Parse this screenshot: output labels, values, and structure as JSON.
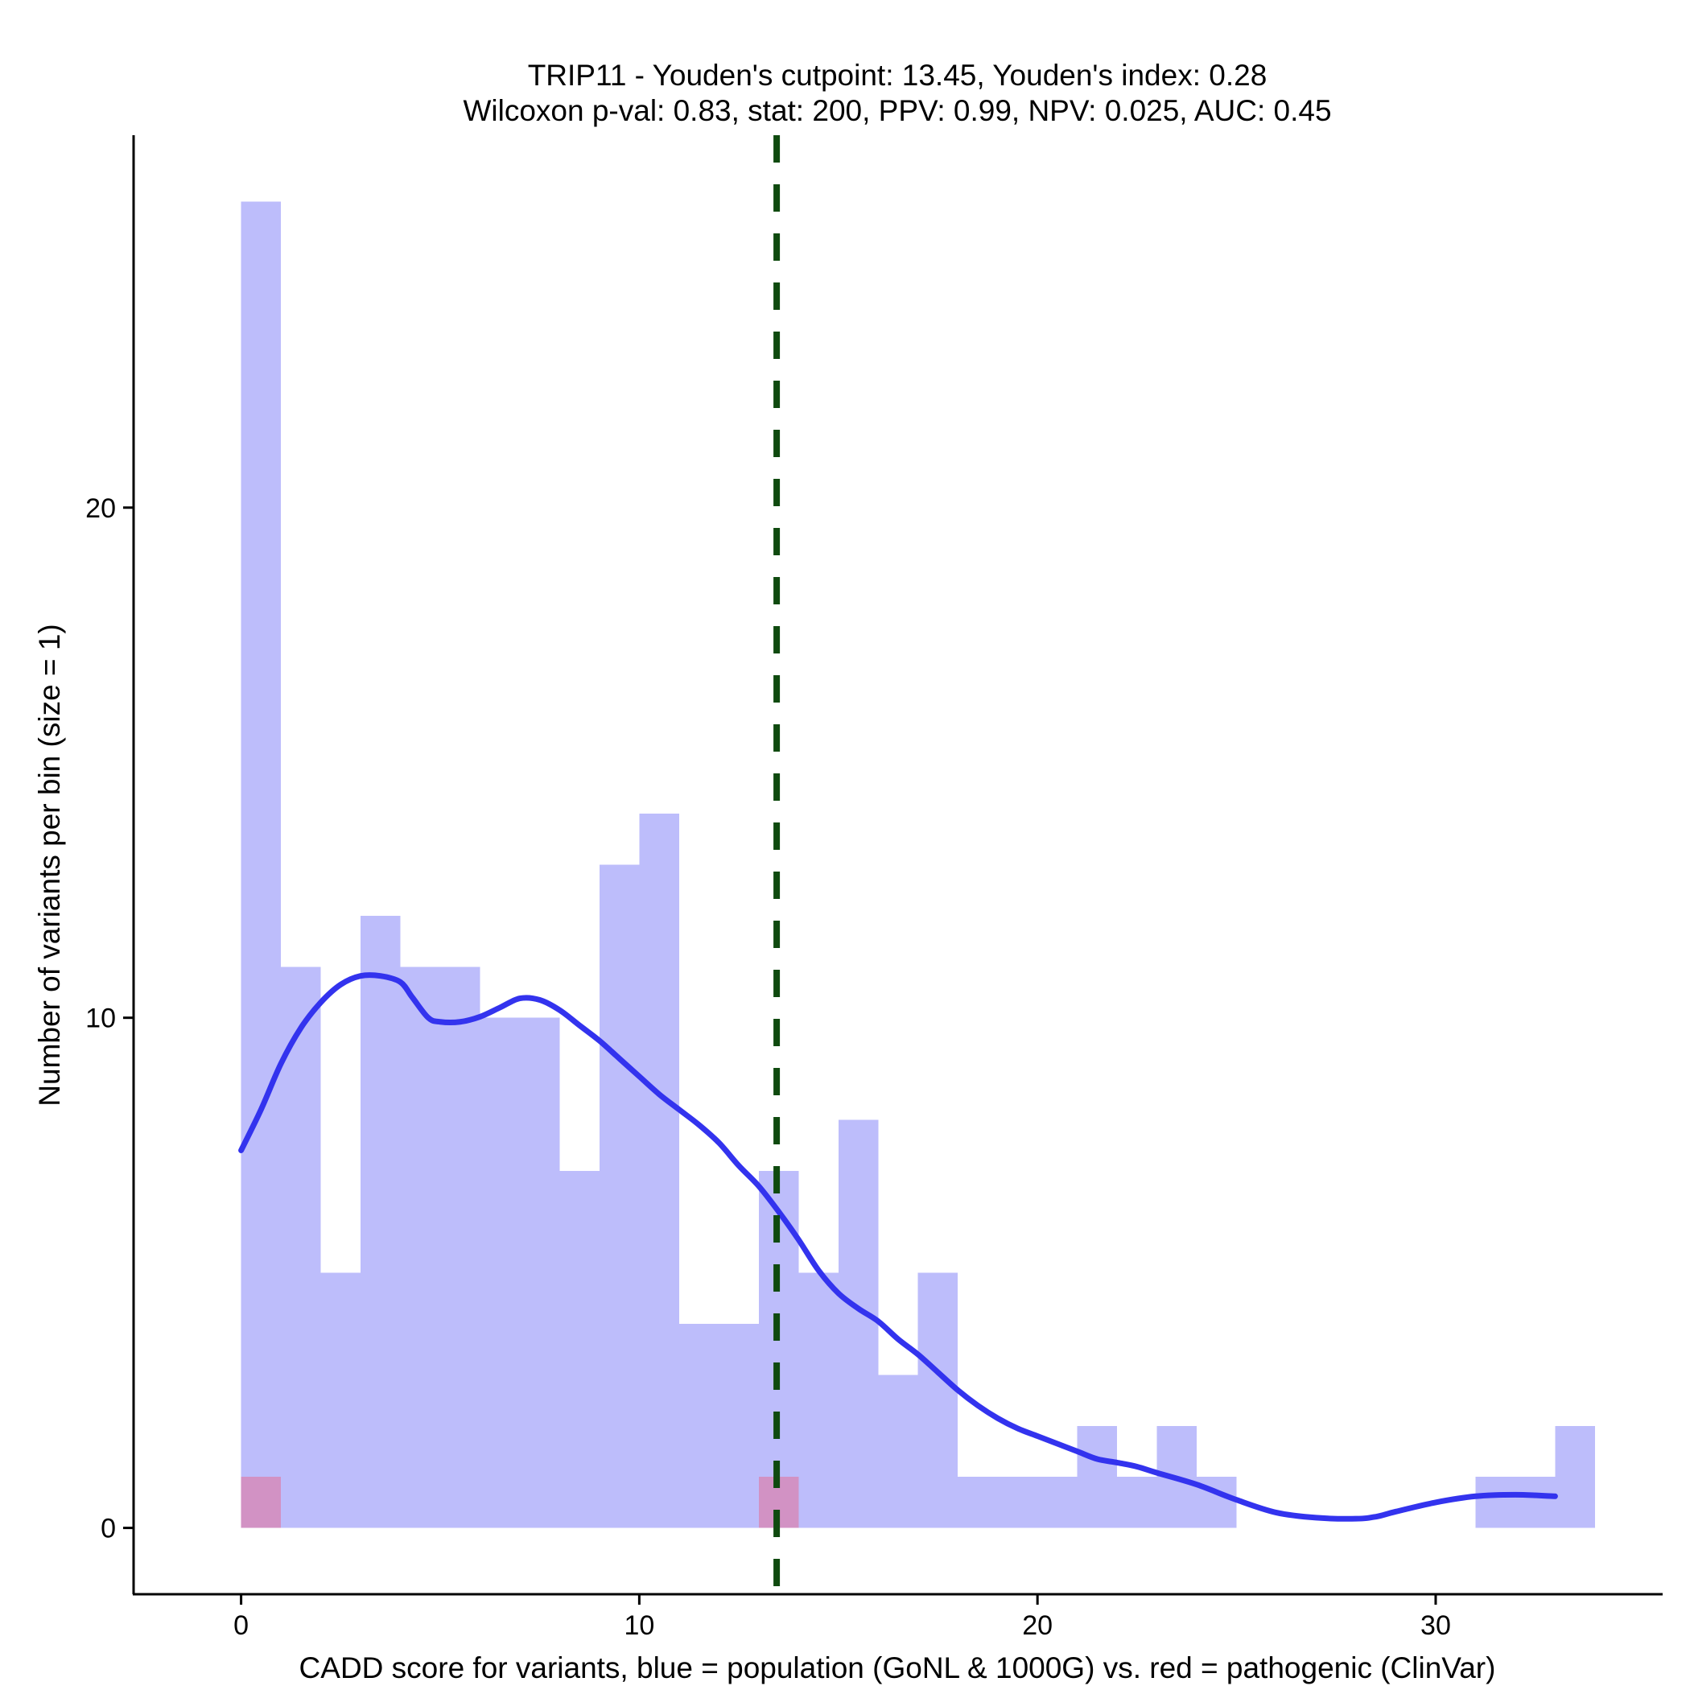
{
  "chart_data": {
    "type": "histogram",
    "title_line1": "TRIP11 - Youden's cutpoint: 13.45, Youden's index: 0.28",
    "title_line2": "Wilcoxon p-val: 0.83, stat: 200, PPV: 0.99, NPV: 0.025, AUC: 0.45",
    "xlabel": "CADD score for variants, blue = population (GoNL & 1000G) vs. red = pathogenic (ClinVar)",
    "ylabel": "Number of variants per bin (size = 1)",
    "xlim": [
      -2.7,
      35.7
    ],
    "ylim": [
      -1.3,
      27.3
    ],
    "x_ticks": [
      0,
      10,
      20,
      30
    ],
    "y_ticks": [
      0,
      10,
      20
    ],
    "bin_width": 1,
    "cutpoint": 13.45,
    "colors": {
      "population": "#bdbdfb",
      "pathogenic": "#d292c4",
      "density": "#3333ee",
      "cutpoint": "#0f4a0f"
    },
    "series": [
      {
        "name": "population",
        "bin_starts": [
          0,
          1,
          2,
          3,
          4,
          5,
          6,
          7,
          8,
          9,
          10,
          11,
          12,
          13,
          14,
          15,
          16,
          17,
          18,
          19,
          20,
          21,
          22,
          23,
          24,
          25,
          26,
          27,
          28,
          29,
          30,
          31,
          32,
          33
        ],
        "values": [
          26,
          11,
          5,
          12,
          11,
          11,
          10,
          10,
          7,
          13,
          14,
          4,
          4,
          7,
          5,
          8,
          3,
          5,
          1,
          1,
          1,
          2,
          1,
          2,
          1,
          0,
          0,
          0,
          0,
          0,
          0,
          1,
          1,
          2
        ]
      },
      {
        "name": "pathogenic",
        "bin_starts": [
          0,
          13
        ],
        "values": [
          1,
          1
        ]
      }
    ],
    "density_curve": {
      "x": [
        0,
        0.5,
        1,
        1.5,
        2,
        2.5,
        3,
        3.5,
        4,
        4.3,
        4.7,
        5,
        5.5,
        6,
        6.5,
        7,
        7.5,
        8,
        8.5,
        9,
        9.5,
        10,
        10.5,
        11,
        11.5,
        12,
        12.5,
        13,
        13.5,
        14,
        14.5,
        15,
        15.5,
        16,
        16.5,
        17,
        17.5,
        18,
        18.5,
        19,
        19.5,
        20,
        20.5,
        21,
        21.5,
        22,
        22.5,
        23,
        24,
        25,
        26,
        27,
        28,
        28.5,
        29,
        30,
        31,
        32,
        33
      ],
      "y": [
        7.4,
        8.2,
        9.1,
        9.8,
        10.3,
        10.65,
        10.82,
        10.82,
        10.7,
        10.4,
        10.0,
        9.92,
        9.92,
        10.02,
        10.2,
        10.38,
        10.35,
        10.15,
        9.85,
        9.55,
        9.2,
        8.85,
        8.5,
        8.2,
        7.9,
        7.55,
        7.1,
        6.7,
        6.2,
        5.65,
        5.05,
        4.6,
        4.3,
        4.05,
        3.7,
        3.4,
        3.05,
        2.7,
        2.4,
        2.15,
        1.95,
        1.8,
        1.65,
        1.5,
        1.35,
        1.28,
        1.2,
        1.08,
        0.85,
        0.55,
        0.3,
        0.2,
        0.18,
        0.22,
        0.32,
        0.5,
        0.62,
        0.65,
        0.62
      ]
    }
  }
}
